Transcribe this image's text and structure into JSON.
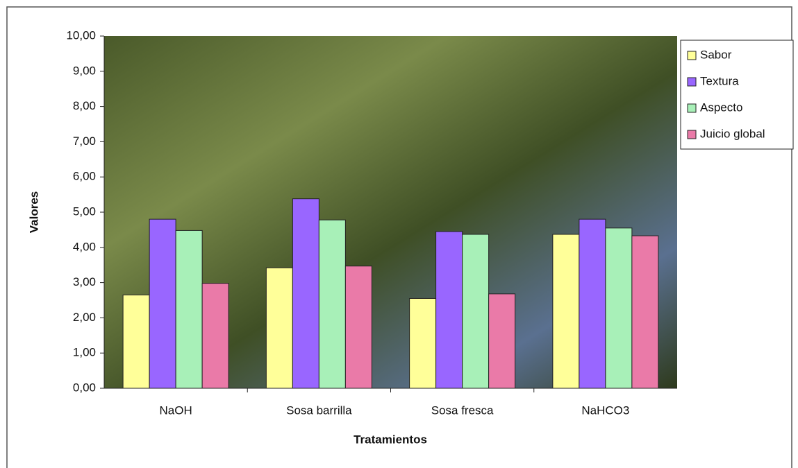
{
  "chart_data": {
    "type": "bar",
    "x_label": "Tratamientos",
    "y_label": "Valores",
    "categories": [
      "NaOH",
      "Sosa barrilla",
      "Sosa fresca",
      "NaHCO3"
    ],
    "series": [
      {
        "name": "Sabor",
        "color": "#ffff99",
        "values": [
          2.65,
          3.42,
          2.55,
          4.37
        ]
      },
      {
        "name": "Textura",
        "color": "#9966ff",
        "values": [
          4.8,
          5.38,
          4.45,
          4.8
        ]
      },
      {
        "name": "Aspecto",
        "color": "#a8f0b8",
        "values": [
          4.48,
          4.78,
          4.37,
          4.55
        ]
      },
      {
        "name": "Juicio global",
        "color": "#ea7aa8",
        "values": [
          2.98,
          3.47,
          2.68,
          4.33
        ]
      }
    ],
    "ylim": [
      0,
      10
    ],
    "yticks": [
      {
        "value": 0,
        "label": "0,00"
      },
      {
        "value": 1,
        "label": "1,00"
      },
      {
        "value": 2,
        "label": "2,00"
      },
      {
        "value": 3,
        "label": "3,00"
      },
      {
        "value": 4,
        "label": "4,00"
      },
      {
        "value": 5,
        "label": "5,00"
      },
      {
        "value": 6,
        "label": "6,00"
      },
      {
        "value": 7,
        "label": "7,00"
      },
      {
        "value": 8,
        "label": "8,00"
      },
      {
        "value": 9,
        "label": "9,00"
      },
      {
        "value": 10,
        "label": "10,00"
      }
    ],
    "legend": "right"
  }
}
